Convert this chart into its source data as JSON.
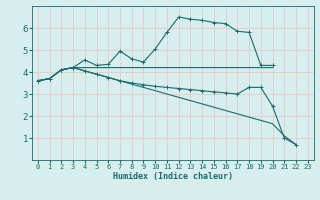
{
  "xlabel": "Humidex (Indice chaleur)",
  "bg_color": "#d6eeee",
  "grid_color": "#e8c8c8",
  "line_color": "#1a6b6b",
  "xlim": [
    -0.5,
    23.5
  ],
  "ylim": [
    0,
    7
  ],
  "xticks": [
    0,
    1,
    2,
    3,
    4,
    5,
    6,
    7,
    8,
    9,
    10,
    11,
    12,
    13,
    14,
    15,
    16,
    17,
    18,
    19,
    20,
    21,
    22,
    23
  ],
  "yticks": [
    1,
    2,
    3,
    4,
    5,
    6
  ],
  "series": [
    {
      "x": [
        0,
        1,
        2,
        3,
        4,
        5,
        6,
        7,
        8,
        9,
        10,
        11,
        12,
        13,
        14,
        15,
        16,
        17,
        18,
        19,
        20
      ],
      "y": [
        3.6,
        3.7,
        4.1,
        4.2,
        4.55,
        4.3,
        4.35,
        4.95,
        4.6,
        4.45,
        5.05,
        5.8,
        6.5,
        6.4,
        6.35,
        6.25,
        6.2,
        5.85,
        5.8,
        4.3,
        4.3
      ],
      "marker": true
    },
    {
      "x": [
        0,
        1,
        2,
        3,
        4,
        5,
        6,
        7,
        8,
        9,
        10,
        11,
        12,
        13,
        14,
        15,
        16,
        17,
        18,
        19,
        20
      ],
      "y": [
        3.6,
        3.7,
        4.1,
        4.2,
        4.2,
        4.2,
        4.2,
        4.2,
        4.2,
        4.2,
        4.2,
        4.2,
        4.2,
        4.2,
        4.2,
        4.2,
        4.2,
        4.2,
        4.2,
        4.2,
        4.2
      ],
      "marker": false
    },
    {
      "x": [
        0,
        1,
        2,
        3,
        4,
        5,
        6,
        7,
        8,
        9,
        10,
        11,
        12,
        13,
        14,
        15,
        16,
        17,
        18,
        19,
        20,
        21,
        22
      ],
      "y": [
        3.6,
        3.7,
        4.1,
        4.2,
        4.05,
        3.9,
        3.75,
        3.6,
        3.45,
        3.3,
        3.15,
        3.0,
        2.85,
        2.7,
        2.55,
        2.4,
        2.25,
        2.1,
        1.95,
        1.8,
        1.65,
        1.1,
        0.7
      ],
      "marker": false
    },
    {
      "x": [
        0,
        1,
        2,
        3,
        4,
        5,
        6,
        7,
        8,
        9,
        10,
        11,
        12,
        13,
        14,
        15,
        16,
        17,
        18,
        19,
        20,
        21,
        22
      ],
      "y": [
        3.6,
        3.7,
        4.1,
        4.2,
        4.05,
        3.9,
        3.75,
        3.6,
        3.5,
        3.42,
        3.35,
        3.3,
        3.25,
        3.2,
        3.15,
        3.1,
        3.05,
        3.0,
        3.3,
        3.3,
        2.45,
        1.0,
        0.7
      ],
      "marker": true
    }
  ]
}
